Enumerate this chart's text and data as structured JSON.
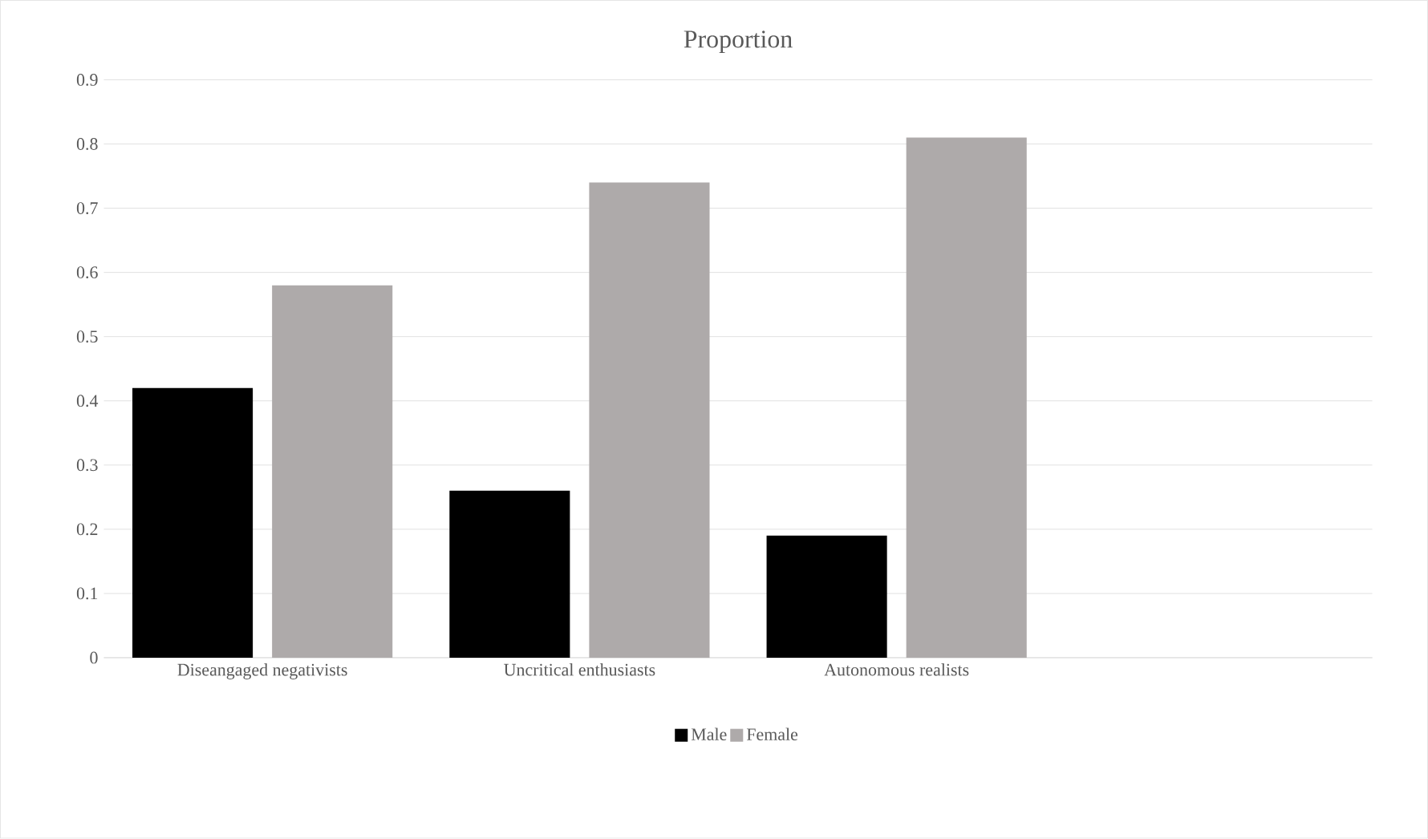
{
  "chart_data": {
    "type": "bar",
    "title": "Proportion",
    "categories": [
      "Diseangaged negativists",
      "Uncritical enthusiasts",
      "Autonomous realists",
      null
    ],
    "series": [
      {
        "name": "Male",
        "color": "#000000",
        "values": [
          0.42,
          0.26,
          0.19,
          null
        ]
      },
      {
        "name": "Female",
        "color": "#aeaaaa",
        "values": [
          0.58,
          0.74,
          0.81,
          null
        ]
      }
    ],
    "ylim": [
      0,
      0.9
    ],
    "yticks": [
      0,
      0.1,
      0.2,
      0.3,
      0.4,
      0.5,
      0.6,
      0.7,
      0.8,
      0.9
    ],
    "grid": "y",
    "legend": "bottom"
  }
}
